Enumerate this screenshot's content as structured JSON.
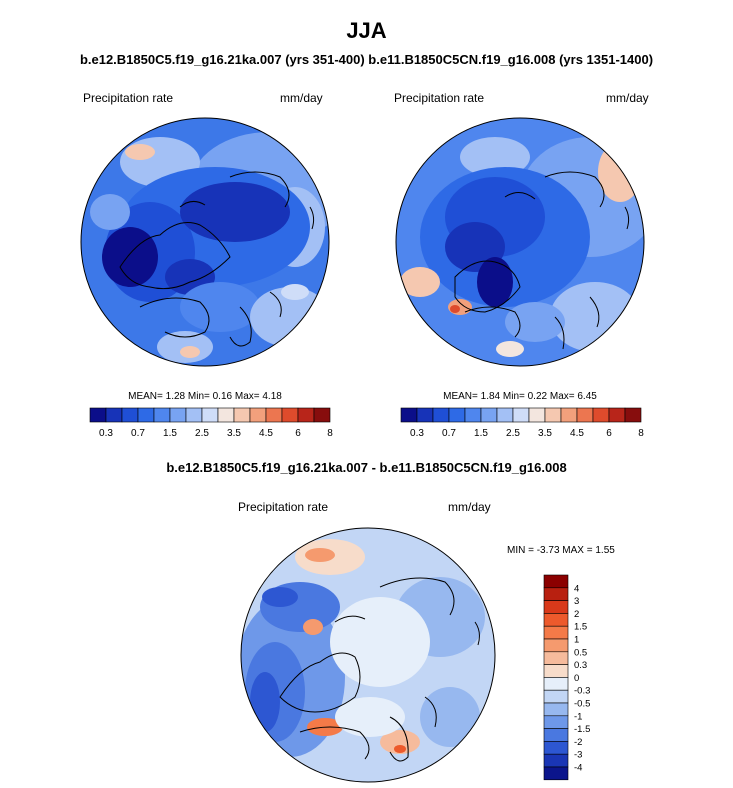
{
  "page": {
    "title": "JJA",
    "top_subtitle": "b.e12.B1850C5.f19_g16.21ka.007 (yrs 351-400) b.e11.B1850C5CN.f19_g16.008 (yrs 1351-1400)",
    "diff_subtitle": "b.e12.B1850C5.f19_g16.21ka.007 - b.e11.B1850C5CN.f19_g16.008"
  },
  "panels": [
    {
      "variable": "Precipitation rate",
      "units": "mm/day",
      "stats": "MEAN=   1.28  Min=   0.16  Max=   4.18"
    },
    {
      "variable": "Precipitation rate",
      "units": "mm/day",
      "stats": "MEAN=   1.84  Min=   0.22  Max=   6.45"
    },
    {
      "variable": "Precipitation rate",
      "units": "mm/day",
      "stats": "MIN =  -3.73 MAX =   1.55"
    }
  ],
  "colorbars": {
    "abs": {
      "colors": [
        "#0b0e8a",
        "#1733b8",
        "#1f4fd6",
        "#2e6ae6",
        "#4f86ee",
        "#78a3f2",
        "#a3c0f5",
        "#cfddf8",
        "#f3e6df",
        "#f5c8b0",
        "#f2a07c",
        "#ec7650",
        "#de4b2c",
        "#b8251a",
        "#870d0d"
      ],
      "tick_labels": [
        "0.3",
        "0.7",
        "1.5",
        "2.5",
        "3.5",
        "4.5",
        "6",
        "8"
      ]
    },
    "diff": {
      "colors": [
        "#8b0000",
        "#b82010",
        "#d9391a",
        "#ed5a2c",
        "#f47a48",
        "#f59a6e",
        "#f6bb9c",
        "#f7dcca",
        "#e6effa",
        "#c2d6f5",
        "#97b8ef",
        "#6e98e9",
        "#4a78e0",
        "#2d57d2",
        "#1a36b5",
        "#0b158c"
      ],
      "tick_labels": [
        "4",
        "3",
        "2",
        "1.5",
        "1",
        "0.5",
        "0.3",
        "0",
        "-0.3",
        "-0.5",
        "-1",
        "-1.5",
        "-2",
        "-3",
        "-4"
      ]
    }
  }
}
